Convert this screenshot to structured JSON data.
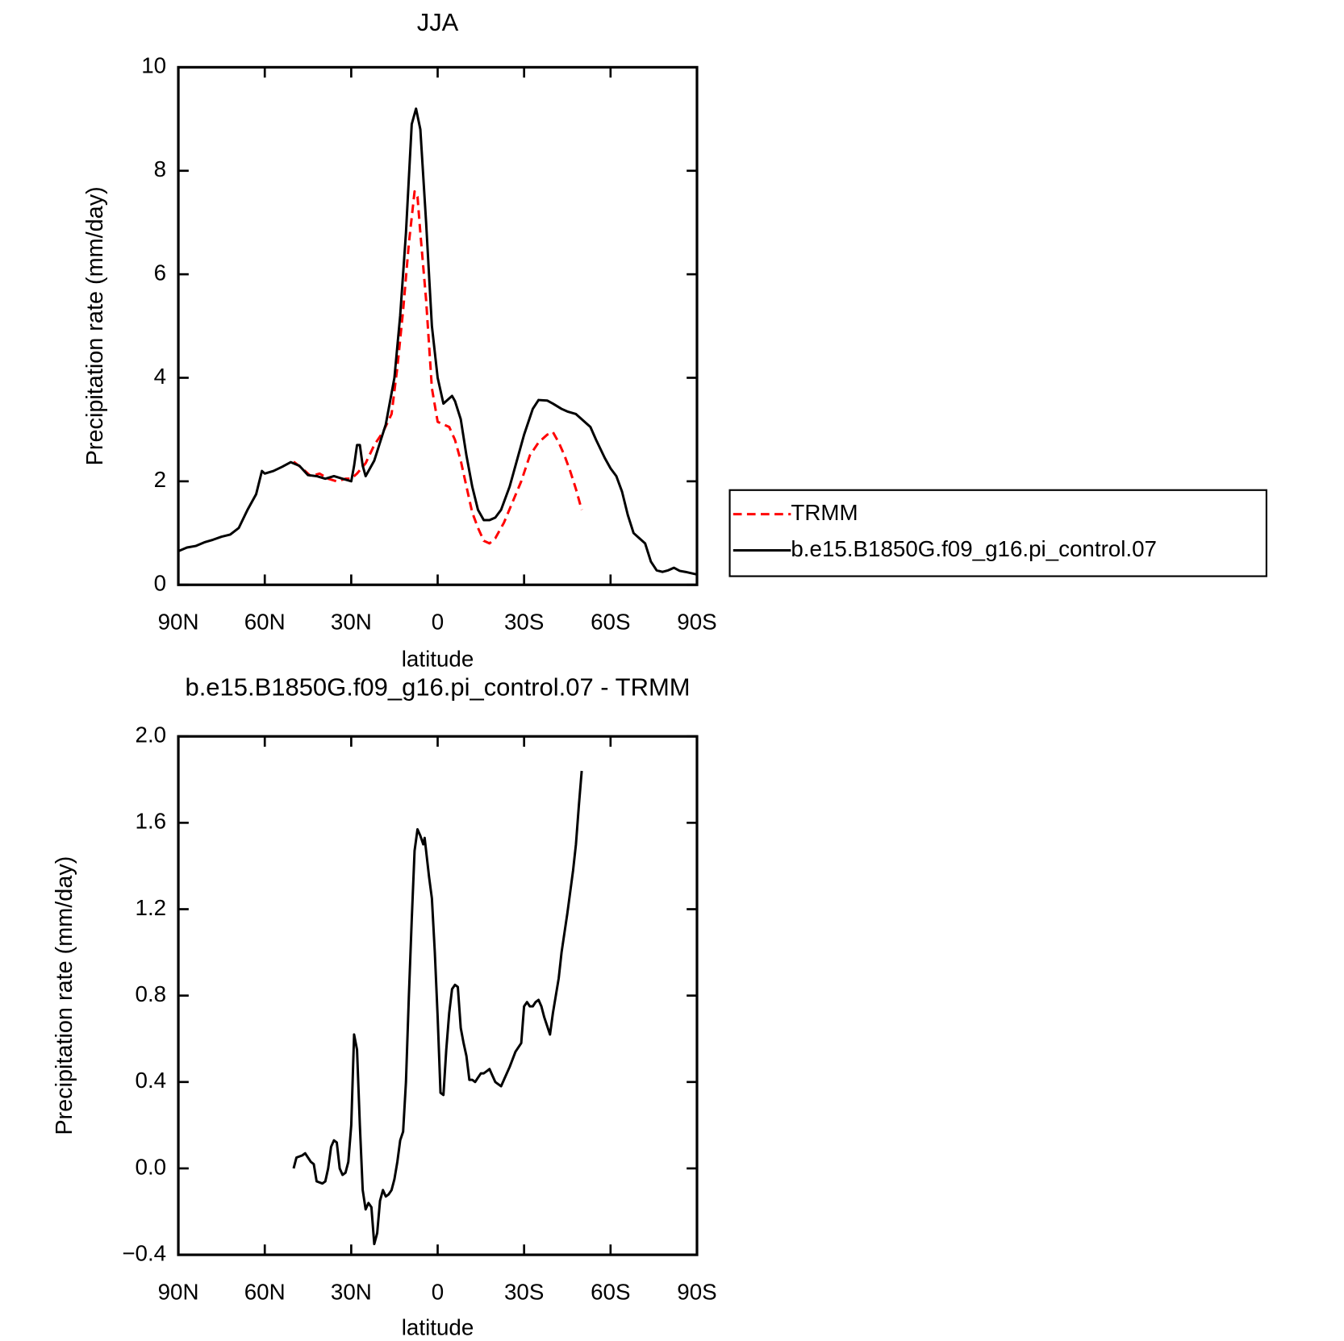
{
  "chart_data": [
    {
      "type": "line",
      "title": "JJA",
      "x_label": "latitude",
      "y_label": "Precipitation rate (mm/day)",
      "xlim": [
        90,
        -90
      ],
      "xticks": [
        {
          "value": 90,
          "label": "90N"
        },
        {
          "value": 60,
          "label": "60N"
        },
        {
          "value": 30,
          "label": "30N"
        },
        0,
        {
          "value": -30,
          "label": "30S"
        },
        {
          "value": -60,
          "label": "60S"
        },
        {
          "value": -90,
          "label": "90S"
        }
      ],
      "ylim": [
        0,
        10
      ],
      "yticks": [
        0,
        2,
        4,
        6,
        8,
        10
      ],
      "legend": "right",
      "series": [
        {
          "name": "TRMM",
          "color": "#ff0000",
          "dash": true,
          "x": [
            50,
            47,
            44,
            41,
            38,
            35,
            32,
            30,
            28,
            25,
            22,
            19,
            16,
            14,
            12,
            10,
            8,
            7,
            6,
            4,
            2,
            0,
            -2,
            -4,
            -6,
            -8,
            -10,
            -12,
            -14,
            -16,
            -18,
            -20,
            -23,
            -26,
            -29,
            -32,
            -35,
            -38,
            -40,
            -42,
            -44,
            -46,
            -48,
            -50
          ],
          "values": [
            2.38,
            2.25,
            2.1,
            2.15,
            2.05,
            2.0,
            2.05,
            2.05,
            2.15,
            2.35,
            2.7,
            2.95,
            3.3,
            4.2,
            5.3,
            6.6,
            7.6,
            7.5,
            6.8,
            5.5,
            3.8,
            3.15,
            3.1,
            3.05,
            2.8,
            2.4,
            1.9,
            1.4,
            1.1,
            0.85,
            0.8,
            0.9,
            1.2,
            1.6,
            2.0,
            2.5,
            2.75,
            2.9,
            2.95,
            2.75,
            2.5,
            2.2,
            1.85,
            1.45
          ]
        },
        {
          "name": "b.e15.B1850G.f09_g16.pi_control.07",
          "color": "#000000",
          "dash": false,
          "x": [
            90,
            87,
            84,
            81,
            78,
            75,
            72,
            69,
            66,
            63,
            61,
            60,
            57,
            54,
            51,
            48,
            45,
            42,
            39,
            36,
            33,
            30,
            29,
            28,
            27,
            26,
            25,
            22,
            20,
            18,
            15,
            13,
            11,
            9,
            7.5,
            6,
            4,
            2,
            0,
            -2,
            -4,
            -5,
            -6,
            -8,
            -10,
            -12,
            -14,
            -16,
            -18,
            -20,
            -22,
            -25,
            -28,
            -30,
            -33,
            -35,
            -38,
            -40,
            -43,
            -45,
            -48,
            -50,
            -53,
            -55,
            -58,
            -60,
            -62,
            -64,
            -66,
            -68,
            -70,
            -72,
            -74,
            -76,
            -78,
            -80,
            -82,
            -84,
            -86,
            -90
          ],
          "values": [
            0.65,
            0.72,
            0.75,
            0.82,
            0.87,
            0.93,
            0.97,
            1.1,
            1.45,
            1.75,
            2.2,
            2.15,
            2.2,
            2.28,
            2.37,
            2.3,
            2.12,
            2.1,
            2.05,
            2.1,
            2.05,
            2.0,
            2.3,
            2.7,
            2.7,
            2.3,
            2.1,
            2.4,
            2.75,
            3.1,
            4.0,
            5.2,
            6.8,
            8.9,
            9.2,
            8.8,
            7.0,
            5.0,
            4.0,
            3.5,
            3.6,
            3.65,
            3.55,
            3.2,
            2.5,
            1.9,
            1.45,
            1.25,
            1.25,
            1.3,
            1.45,
            1.9,
            2.5,
            2.9,
            3.4,
            3.57,
            3.56,
            3.5,
            3.4,
            3.35,
            3.3,
            3.2,
            3.05,
            2.8,
            2.45,
            2.25,
            2.1,
            1.8,
            1.35,
            1.0,
            0.9,
            0.8,
            0.45,
            0.28,
            0.25,
            0.28,
            0.33,
            0.27,
            0.25,
            0.2
          ]
        }
      ]
    },
    {
      "type": "line",
      "title": "b.e15.B1850G.f09_g16.pi_control.07 - TRMM",
      "x_label": "latitude",
      "y_label": "Precipitation rate (mm/day)",
      "xlim": [
        90,
        -90
      ],
      "xticks": [
        {
          "value": 90,
          "label": "90N"
        },
        {
          "value": 60,
          "label": "60N"
        },
        {
          "value": 30,
          "label": "30N"
        },
        0,
        {
          "value": -30,
          "label": "30S"
        },
        {
          "value": -60,
          "label": "60S"
        },
        {
          "value": -90,
          "label": "90S"
        }
      ],
      "ylim": [
        -0.4,
        2.0
      ],
      "yticks": [
        {
          "value": -0.4,
          "label": "−0.4"
        },
        {
          "value": 0,
          "label": "0.0"
        },
        0.4,
        0.8,
        1.2,
        1.6,
        {
          "value": 2.0,
          "label": "2.0"
        }
      ],
      "series": [
        {
          "color": "#000000",
          "dash": false,
          "x": [
            50,
            49,
            47,
            46,
            44,
            43,
            42,
            40,
            39,
            38,
            37,
            36,
            35,
            34,
            33,
            32,
            31,
            30,
            29,
            28,
            27,
            26,
            25,
            24,
            23,
            22,
            21,
            20,
            19,
            18,
            17,
            16,
            15,
            14,
            13,
            12,
            11,
            10,
            9,
            8,
            7,
            6,
            5,
            4.5,
            3,
            2,
            1,
            0,
            -1,
            -2,
            -3,
            -4,
            -5,
            -6,
            -7,
            -8,
            -9,
            -10,
            -11,
            -12,
            -13,
            -14,
            -15,
            -16,
            -17,
            -18,
            -19,
            -20,
            -21,
            -22,
            -23,
            -25,
            -27,
            -29,
            -30,
            -31,
            -32,
            -33,
            -34,
            -35,
            -36,
            -37,
            -39,
            -40,
            -42,
            -43,
            -45,
            -47,
            -48,
            -49,
            -50
          ],
          "values": [
            0.0,
            0.05,
            0.06,
            0.07,
            0.03,
            0.02,
            -0.06,
            -0.07,
            -0.06,
            0.0,
            0.1,
            0.13,
            0.12,
            0.0,
            -0.03,
            -0.02,
            0.03,
            0.2,
            0.62,
            0.55,
            0.2,
            -0.1,
            -0.19,
            -0.16,
            -0.18,
            -0.35,
            -0.3,
            -0.15,
            -0.1,
            -0.13,
            -0.12,
            -0.1,
            -0.05,
            0.03,
            0.13,
            0.17,
            0.4,
            0.8,
            1.15,
            1.47,
            1.57,
            1.54,
            1.5,
            1.53,
            1.35,
            1.25,
            1.0,
            0.7,
            0.35,
            0.34,
            0.55,
            0.72,
            0.83,
            0.85,
            0.84,
            0.65,
            0.58,
            0.52,
            0.41,
            0.41,
            0.4,
            0.42,
            0.44,
            0.44,
            0.45,
            0.46,
            0.43,
            0.4,
            0.39,
            0.38,
            0.41,
            0.47,
            0.54,
            0.58,
            0.75,
            0.77,
            0.75,
            0.75,
            0.77,
            0.78,
            0.75,
            0.7,
            0.62,
            0.72,
            0.88,
            1.0,
            1.18,
            1.38,
            1.5,
            1.68,
            1.84
          ]
        }
      ]
    }
  ]
}
